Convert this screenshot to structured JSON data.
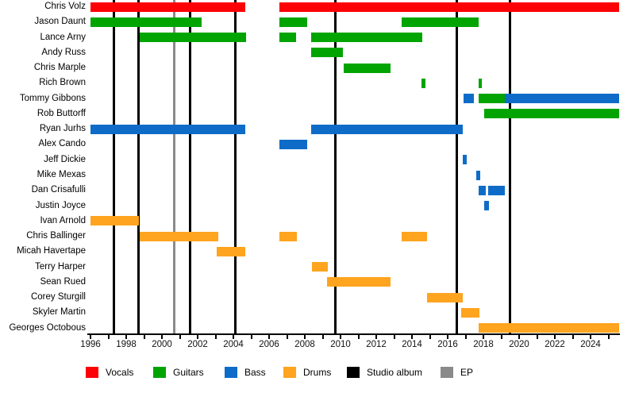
{
  "chart_data": {
    "type": "bar",
    "subtype": "band-member-timeline-gantt",
    "title": "",
    "x_axis": {
      "min": 1996,
      "max": 2025.6,
      "minor_tick_every": 1,
      "label_every": 2,
      "tick_labels": [
        "1996",
        "1998",
        "2000",
        "2002",
        "2004",
        "2006",
        "2008",
        "2010",
        "2012",
        "2014",
        "2016",
        "2018",
        "2020",
        "2022",
        "2024"
      ]
    },
    "roles": [
      {
        "id": "vocals",
        "label": "Vocals",
        "color": "#fc0207"
      },
      {
        "id": "guitars",
        "label": "Guitars",
        "color": "#02a402"
      },
      {
        "id": "bass",
        "label": "Bass",
        "color": "#0e6cc8"
      },
      {
        "id": "drums",
        "label": "Drums",
        "color": "#ffa41f"
      }
    ],
    "events": [
      {
        "id": "studio_album",
        "label": "Studio album",
        "color": "#000000",
        "years": [
          1997.33,
          1998.67,
          2001.56,
          2004.13,
          2009.73,
          2016.53,
          2019.47
        ]
      },
      {
        "id": "ep",
        "label": "EP",
        "color": "#8a8a8a",
        "years": [
          2000.67
        ]
      }
    ],
    "members": [
      {
        "name": "Chris Volz",
        "segments": [
          {
            "role": "vocals",
            "start": 1996.0,
            "end": 2004.67
          },
          {
            "role": "vocals",
            "start": 2006.58,
            "end": 2025.6
          }
        ]
      },
      {
        "name": "Jason Daunt",
        "segments": [
          {
            "role": "guitars",
            "start": 1996.0,
            "end": 2002.22
          },
          {
            "role": "guitars",
            "start": 2006.58,
            "end": 2008.13
          },
          {
            "role": "guitars",
            "start": 2013.42,
            "end": 2017.73
          }
        ]
      },
      {
        "name": "Lance Arny",
        "segments": [
          {
            "role": "guitars",
            "start": 1998.76,
            "end": 2004.71
          },
          {
            "role": "guitars",
            "start": 2006.58,
            "end": 2007.51
          },
          {
            "role": "guitars",
            "start": 2008.36,
            "end": 2014.58
          }
        ]
      },
      {
        "name": "Andy Russ",
        "segments": [
          {
            "role": "guitars",
            "start": 2008.36,
            "end": 2010.13
          }
        ]
      },
      {
        "name": "Chris Marple",
        "segments": [
          {
            "role": "guitars",
            "start": 2010.18,
            "end": 2012.8
          }
        ]
      },
      {
        "name": "Rich Brown",
        "segments": [
          {
            "role": "guitars",
            "start": 2014.53,
            "end": 2014.76
          },
          {
            "role": "guitars",
            "start": 2017.73,
            "end": 2017.93
          }
        ]
      },
      {
        "name": "Tommy Gibbons",
        "segments": [
          {
            "role": "bass",
            "start": 2016.89,
            "end": 2017.47
          },
          {
            "role": "guitars",
            "start": 2017.73,
            "end": 2019.2
          },
          {
            "role": "bass",
            "start": 2019.2,
            "end": 2025.6
          }
        ]
      },
      {
        "name": "Rob Buttorff",
        "segments": [
          {
            "role": "guitars",
            "start": 2018.04,
            "end": 2025.6
          }
        ]
      },
      {
        "name": "Ryan Jurhs",
        "segments": [
          {
            "role": "bass",
            "start": 1996.0,
            "end": 2004.67
          },
          {
            "role": "bass",
            "start": 2008.36,
            "end": 2016.84
          }
        ]
      },
      {
        "name": "Alex Cando",
        "segments": [
          {
            "role": "bass",
            "start": 2006.58,
            "end": 2008.13
          }
        ]
      },
      {
        "name": "Jeff Dickie",
        "segments": [
          {
            "role": "bass",
            "start": 2016.84,
            "end": 2017.07
          }
        ]
      },
      {
        "name": "Mike Mexas",
        "segments": [
          {
            "role": "bass",
            "start": 2017.6,
            "end": 2017.8
          }
        ]
      },
      {
        "name": "Dan Crisafulli",
        "segments": [
          {
            "role": "bass",
            "start": 2017.73,
            "end": 2018.13
          },
          {
            "role": "bass",
            "start": 2018.27,
            "end": 2019.2
          }
        ]
      },
      {
        "name": "Justin Joyce",
        "segments": [
          {
            "role": "bass",
            "start": 2018.04,
            "end": 2018.31
          }
        ]
      },
      {
        "name": "Ivan Arnold",
        "segments": [
          {
            "role": "drums",
            "start": 1996.0,
            "end": 1998.71
          }
        ]
      },
      {
        "name": "Chris Ballinger",
        "segments": [
          {
            "role": "drums",
            "start": 1998.76,
            "end": 2003.16
          },
          {
            "role": "drums",
            "start": 2006.58,
            "end": 2007.56
          },
          {
            "role": "drums",
            "start": 2013.42,
            "end": 2014.84
          }
        ]
      },
      {
        "name": "Micah Havertape",
        "segments": [
          {
            "role": "drums",
            "start": 2003.07,
            "end": 2004.67
          }
        ]
      },
      {
        "name": "Terry Harper",
        "segments": [
          {
            "role": "drums",
            "start": 2008.4,
            "end": 2009.29
          }
        ]
      },
      {
        "name": "Sean Rued",
        "segments": [
          {
            "role": "drums",
            "start": 2009.24,
            "end": 2012.8
          }
        ]
      },
      {
        "name": "Corey Sturgill",
        "segments": [
          {
            "role": "drums",
            "start": 2014.84,
            "end": 2016.84
          }
        ]
      },
      {
        "name": "Skyler Martin",
        "segments": [
          {
            "role": "drums",
            "start": 2016.76,
            "end": 2017.78
          }
        ]
      },
      {
        "name": "Georges Octobous",
        "segments": [
          {
            "role": "drums",
            "start": 2017.73,
            "end": 2025.6
          }
        ]
      }
    ],
    "legend_order": [
      "Vocals",
      "Guitars",
      "Bass",
      "Drums",
      "Studio album",
      "EP"
    ],
    "grid": false,
    "legend_position": "bottom"
  }
}
